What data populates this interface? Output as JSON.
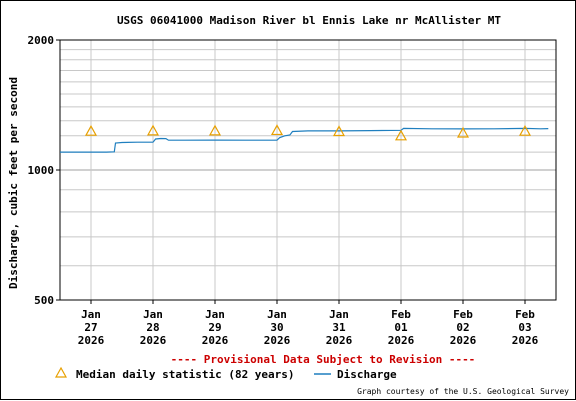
{
  "chart_data": {
    "type": "line",
    "title": "USGS 06041000 Madison River bl Ennis Lake nr McAllister MT",
    "ylabel": "Discharge, cubic feet per second",
    "xlabel": "",
    "y_scale": "log",
    "ylim": [
      500,
      2000
    ],
    "y_ticks": [
      "500",
      "1000",
      "2000"
    ],
    "xlim": [
      "2026-01-26T12:00",
      "2026-02-03T12:00"
    ],
    "x_ticks": [
      {
        "at": "2026-01-27T00:00",
        "lines": [
          "Jan",
          "27",
          "2026"
        ]
      },
      {
        "at": "2026-01-28T00:00",
        "lines": [
          "Jan",
          "28",
          "2026"
        ]
      },
      {
        "at": "2026-01-29T00:00",
        "lines": [
          "Jan",
          "29",
          "2026"
        ]
      },
      {
        "at": "2026-01-30T00:00",
        "lines": [
          "Jan",
          "30",
          "2026"
        ]
      },
      {
        "at": "2026-01-31T00:00",
        "lines": [
          "Jan",
          "31",
          "2026"
        ]
      },
      {
        "at": "2026-02-01T00:00",
        "lines": [
          "Feb",
          "01",
          "2026"
        ]
      },
      {
        "at": "2026-02-02T00:00",
        "lines": [
          "Feb",
          "02",
          "2026"
        ]
      },
      {
        "at": "2026-02-03T00:00",
        "lines": [
          "Feb",
          "03",
          "2026"
        ]
      }
    ],
    "grid": true,
    "legend_position": "bottom",
    "series": [
      {
        "name": "Discharge",
        "color": "#1f7fbf",
        "marker": "line",
        "points": [
          [
            "2026-01-26T12:00",
            1100
          ],
          [
            "2026-01-27T00:00",
            1100
          ],
          [
            "2026-01-27T06:00",
            1100
          ],
          [
            "2026-01-27T09:00",
            1102
          ],
          [
            "2026-01-27T09:30",
            1155
          ],
          [
            "2026-01-27T12:00",
            1158
          ],
          [
            "2026-01-27T18:00",
            1160
          ],
          [
            "2026-01-28T00:00",
            1160
          ],
          [
            "2026-01-28T01:00",
            1180
          ],
          [
            "2026-01-28T03:00",
            1183
          ],
          [
            "2026-01-28T05:00",
            1182
          ],
          [
            "2026-01-28T06:00",
            1172
          ],
          [
            "2026-01-28T12:00",
            1172
          ],
          [
            "2026-01-29T00:00",
            1173
          ],
          [
            "2026-01-29T12:00",
            1172
          ],
          [
            "2026-01-30T00:00",
            1172
          ],
          [
            "2026-01-30T01:00",
            1188
          ],
          [
            "2026-01-30T03:00",
            1200
          ],
          [
            "2026-01-30T05:00",
            1205
          ],
          [
            "2026-01-30T06:00",
            1228
          ],
          [
            "2026-01-30T12:00",
            1232
          ],
          [
            "2026-01-31T00:00",
            1232
          ],
          [
            "2026-01-31T12:00",
            1234
          ],
          [
            "2026-02-01T00:00",
            1236
          ],
          [
            "2026-02-01T01:00",
            1248
          ],
          [
            "2026-02-01T12:00",
            1246
          ],
          [
            "2026-02-02T00:00",
            1245
          ],
          [
            "2026-02-02T12:00",
            1246
          ],
          [
            "2026-02-03T00:00",
            1248
          ],
          [
            "2026-02-03T06:00",
            1246
          ],
          [
            "2026-02-03T09:00",
            1247
          ]
        ]
      },
      {
        "name": "Median daily statistic (82 years)",
        "color": "#e8a000",
        "marker": "triangle",
        "points": [
          [
            "2026-01-27T00:00",
            1230
          ],
          [
            "2026-01-28T00:00",
            1232
          ],
          [
            "2026-01-29T00:00",
            1232
          ],
          [
            "2026-01-30T00:00",
            1235
          ],
          [
            "2026-01-31T00:00",
            1228
          ],
          [
            "2026-02-01T00:00",
            1200
          ],
          [
            "2026-02-02T00:00",
            1218
          ],
          [
            "2026-02-03T00:00",
            1230
          ]
        ]
      }
    ]
  },
  "labels": {
    "provisional": "---- Provisional Data Subject to Revision ----",
    "legend_median": "Median daily statistic (82 years)",
    "legend_discharge": "Discharge",
    "credit": "Graph courtesy of the U.S. Geological Survey"
  },
  "colors": {
    "provisional": "#cc0000",
    "grid": "#c8c8c8",
    "axis": "#000000"
  }
}
